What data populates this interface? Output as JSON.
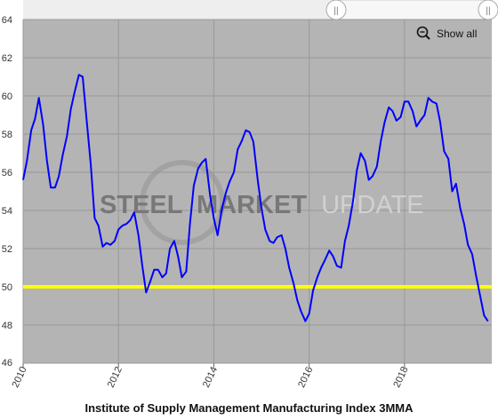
{
  "chart_data": {
    "type": "line",
    "title": "Institute of Supply Management Manufacturing Index 3MMA",
    "xlim": [
      2010.0,
      2019.83
    ],
    "ylim": [
      46,
      64
    ],
    "x_ticks": [
      2010,
      2012,
      2014,
      2016,
      2018
    ],
    "y_ticks": [
      46,
      48,
      50,
      52,
      54,
      56,
      58,
      60,
      62,
      64
    ],
    "grid": true,
    "background_color": "#b4b4b4",
    "series": [
      {
        "color": "#0000ff",
        "points": [
          [
            2010.0,
            55.6
          ],
          [
            2010.08,
            56.6
          ],
          [
            2010.17,
            58.2
          ],
          [
            2010.25,
            58.8
          ],
          [
            2010.33,
            59.9
          ],
          [
            2010.42,
            58.5
          ],
          [
            2010.5,
            56.6
          ],
          [
            2010.58,
            55.2
          ],
          [
            2010.67,
            55.2
          ],
          [
            2010.75,
            55.8
          ],
          [
            2010.83,
            56.9
          ],
          [
            2010.92,
            57.9
          ],
          [
            2011.0,
            59.3
          ],
          [
            2011.08,
            60.2
          ],
          [
            2011.17,
            61.1
          ],
          [
            2011.25,
            61.0
          ],
          [
            2011.33,
            58.8
          ],
          [
            2011.42,
            56.4
          ],
          [
            2011.5,
            53.6
          ],
          [
            2011.58,
            53.2
          ],
          [
            2011.67,
            52.1
          ],
          [
            2011.75,
            52.3
          ],
          [
            2011.83,
            52.2
          ],
          [
            2011.92,
            52.4
          ],
          [
            2012.0,
            53.0
          ],
          [
            2012.08,
            53.2
          ],
          [
            2012.17,
            53.3
          ],
          [
            2012.25,
            53.5
          ],
          [
            2012.33,
            53.9
          ],
          [
            2012.42,
            52.7
          ],
          [
            2012.5,
            51.1
          ],
          [
            2012.58,
            49.7
          ],
          [
            2012.67,
            50.3
          ],
          [
            2012.75,
            50.9
          ],
          [
            2012.83,
            50.9
          ],
          [
            2012.92,
            50.5
          ],
          [
            2013.0,
            50.7
          ],
          [
            2013.08,
            52.0
          ],
          [
            2013.17,
            52.4
          ],
          [
            2013.25,
            51.6
          ],
          [
            2013.33,
            50.5
          ],
          [
            2013.42,
            50.8
          ],
          [
            2013.5,
            53.3
          ],
          [
            2013.58,
            55.3
          ],
          [
            2013.67,
            56.2
          ],
          [
            2013.75,
            56.5
          ],
          [
            2013.83,
            56.7
          ],
          [
            2013.92,
            54.8
          ],
          [
            2014.0,
            53.6
          ],
          [
            2014.08,
            52.7
          ],
          [
            2014.17,
            54.1
          ],
          [
            2014.25,
            54.9
          ],
          [
            2014.33,
            55.5
          ],
          [
            2014.42,
            56.0
          ],
          [
            2014.5,
            57.2
          ],
          [
            2014.58,
            57.6
          ],
          [
            2014.67,
            58.2
          ],
          [
            2014.75,
            58.1
          ],
          [
            2014.83,
            57.6
          ],
          [
            2014.92,
            55.6
          ],
          [
            2015.0,
            54.1
          ],
          [
            2015.08,
            53.0
          ],
          [
            2015.17,
            52.4
          ],
          [
            2015.25,
            52.3
          ],
          [
            2015.33,
            52.6
          ],
          [
            2015.42,
            52.7
          ],
          [
            2015.5,
            52.0
          ],
          [
            2015.58,
            51.0
          ],
          [
            2015.67,
            50.2
          ],
          [
            2015.75,
            49.3
          ],
          [
            2015.83,
            48.7
          ],
          [
            2015.92,
            48.2
          ],
          [
            2016.0,
            48.6
          ],
          [
            2016.08,
            49.8
          ],
          [
            2016.17,
            50.5
          ],
          [
            2016.25,
            51.0
          ],
          [
            2016.33,
            51.4
          ],
          [
            2016.42,
            51.9
          ],
          [
            2016.5,
            51.6
          ],
          [
            2016.58,
            51.1
          ],
          [
            2016.67,
            51.0
          ],
          [
            2016.75,
            52.4
          ],
          [
            2016.83,
            53.2
          ],
          [
            2016.92,
            54.5
          ],
          [
            2017.0,
            56.1
          ],
          [
            2017.08,
            57.0
          ],
          [
            2017.17,
            56.6
          ],
          [
            2017.25,
            55.6
          ],
          [
            2017.33,
            55.8
          ],
          [
            2017.42,
            56.3
          ],
          [
            2017.5,
            57.6
          ],
          [
            2017.58,
            58.6
          ],
          [
            2017.67,
            59.4
          ],
          [
            2017.75,
            59.2
          ],
          [
            2017.83,
            58.7
          ],
          [
            2017.92,
            58.9
          ],
          [
            2018.0,
            59.7
          ],
          [
            2018.08,
            59.7
          ],
          [
            2018.17,
            59.2
          ],
          [
            2018.25,
            58.4
          ],
          [
            2018.33,
            58.7
          ],
          [
            2018.42,
            59.0
          ],
          [
            2018.5,
            59.9
          ],
          [
            2018.58,
            59.7
          ],
          [
            2018.67,
            59.6
          ],
          [
            2018.75,
            58.6
          ],
          [
            2018.83,
            57.1
          ],
          [
            2018.92,
            56.7
          ],
          [
            2019.0,
            55.0
          ],
          [
            2019.08,
            55.4
          ],
          [
            2019.17,
            54.1
          ],
          [
            2019.25,
            53.3
          ],
          [
            2019.33,
            52.2
          ],
          [
            2019.42,
            51.7
          ],
          [
            2019.5,
            50.6
          ],
          [
            2019.58,
            49.6
          ],
          [
            2019.67,
            48.5
          ],
          [
            2019.75,
            48.2
          ]
        ]
      }
    ],
    "reference_line": {
      "y": 50,
      "color": "#ffff00"
    }
  },
  "watermark": {
    "part1": "STEEL",
    "part2": "MARKET",
    "part3": "UPDATE",
    "color_dark": "#6e6e6e",
    "color_light": "#d7d7d7"
  },
  "controls": {
    "show_all_label": "Show all",
    "handle_left_label": "||",
    "handle_right_label": "||"
  },
  "caption": "Institute of Supply Management Manufacturing Index 3MMA"
}
